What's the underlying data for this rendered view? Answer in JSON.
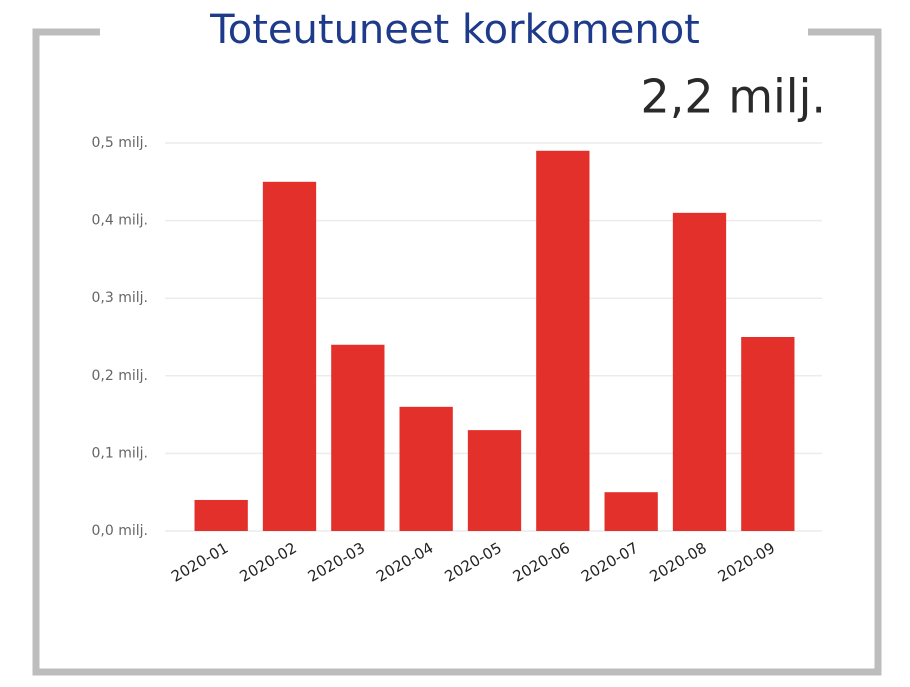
{
  "chart_data": {
    "type": "bar",
    "title": "Toteutuneet korkomenot",
    "kpi": "2,2 milj.",
    "categories": [
      "2020-01",
      "2020-02",
      "2020-03",
      "2020-04",
      "2020-05",
      "2020-06",
      "2020-07",
      "2020-08",
      "2020-09"
    ],
    "values": [
      0.04,
      0.45,
      0.24,
      0.16,
      0.13,
      0.49,
      0.05,
      0.41,
      0.25
    ],
    "color": "#e3302a",
    "ylim": [
      0,
      0.5
    ],
    "yticks": [
      {
        "value": 0,
        "label": "0,0 milj."
      },
      {
        "value": 0.1,
        "label": "0,1 milj."
      },
      {
        "value": 0.2,
        "label": "0,2 milj."
      },
      {
        "value": 0.3,
        "label": "0,3 milj."
      },
      {
        "value": 0.4,
        "label": "0,4 milj."
      },
      {
        "value": 0.5,
        "label": "0,5 milj."
      }
    ],
    "grid": true
  }
}
